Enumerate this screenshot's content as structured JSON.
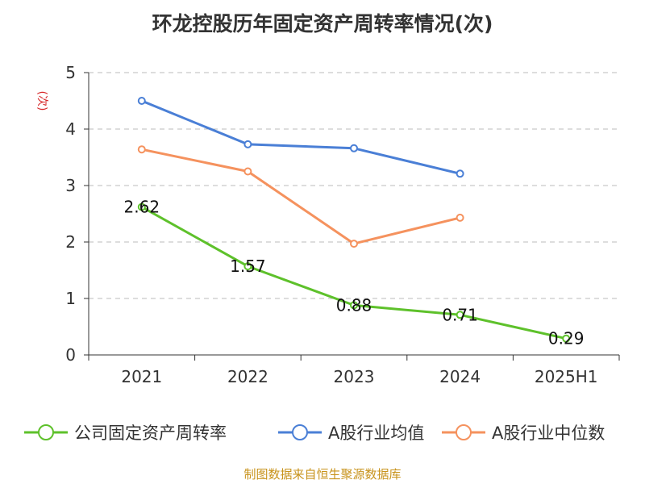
{
  "chart_data": {
    "type": "line",
    "title": "环龙控股历年固定资产周转率情况(次)",
    "ylabel": "(次)",
    "xlabel": "",
    "categories": [
      "2021",
      "2022",
      "2023",
      "2024",
      "2025H1"
    ],
    "ylim": [
      0,
      5
    ],
    "yticks": [
      0,
      1,
      2,
      3,
      4,
      5
    ],
    "grid": true,
    "legend_position": "bottom",
    "series": [
      {
        "name": "公司固定资产周转率",
        "color": "#5ec12b",
        "values": [
          2.62,
          1.57,
          0.88,
          0.71,
          0.29
        ],
        "labels": [
          "2.62",
          "1.57",
          "0.88",
          "0.71",
          "0.29"
        ]
      },
      {
        "name": "A股行业均值",
        "color": "#4a7fd6",
        "values": [
          4.5,
          3.73,
          3.66,
          3.21,
          null
        ]
      },
      {
        "name": "A股行业中位数",
        "color": "#f5925e",
        "values": [
          3.64,
          3.25,
          1.97,
          2.43,
          null
        ]
      }
    ]
  },
  "source": "制图数据来自恒生聚源数据库"
}
